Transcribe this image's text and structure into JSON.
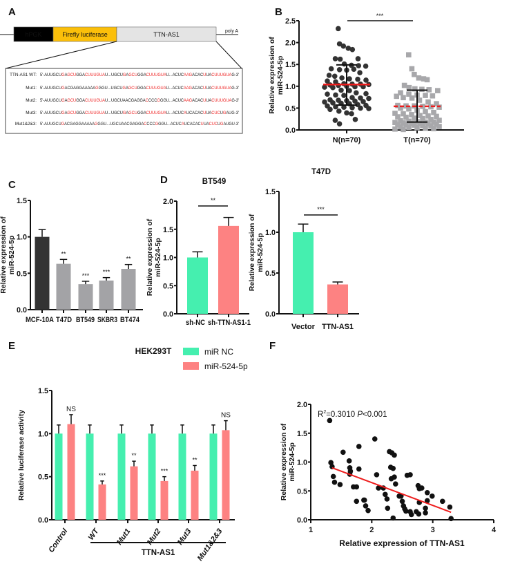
{
  "panel_labels": {
    "a": "A",
    "b": "B",
    "c": "C",
    "d": "D",
    "e": "E",
    "f": "F"
  },
  "colors": {
    "green": "#45efaf",
    "pink": "#fd8282",
    "dark": "#333333",
    "grey": "#a3a3a6",
    "red": "#ee1c1c",
    "orange": "#fbbf0a",
    "construct_grey": "#e4e4e4"
  },
  "panel_a": {
    "construct": {
      "promoter": "hPGK",
      "reporter": "Firefly luciferase",
      "insert": "TTN-AS1",
      "tail": "poly A"
    },
    "sequences": [
      {
        "label": "TTN-AS1 WT:",
        "segments": [
          [
            "5'-AUUGCU",
            0
          ],
          [
            "G",
            1
          ],
          [
            "A",
            0
          ],
          [
            "GCU",
            1
          ],
          [
            "GGA",
            0
          ],
          [
            "CUUUGUA",
            1
          ],
          [
            "U...UGCU",
            0
          ],
          [
            "G",
            1
          ],
          [
            "A",
            0
          ],
          [
            "GCU",
            1
          ],
          [
            "GGA",
            0
          ],
          [
            "CUUUGUA",
            1
          ],
          [
            "U...ACUC",
            0
          ],
          [
            "AAG",
            1
          ],
          [
            "ACAC",
            0
          ],
          [
            "U",
            1
          ],
          [
            "UA",
            0
          ],
          [
            "CUUUGUA",
            1
          ],
          [
            "G-3'",
            0
          ]
        ]
      },
      {
        "label": "Mut1:",
        "segments": [
          [
            "5'-AUUGCU",
            0
          ],
          [
            "G",
            1
          ],
          [
            "ACGAGGAAAAA",
            0
          ],
          [
            "G",
            1
          ],
          [
            "GGU...UGCU",
            0
          ],
          [
            "G",
            1
          ],
          [
            "A",
            0
          ],
          [
            "GCU",
            1
          ],
          [
            "GGA",
            0
          ],
          [
            "CUUUGUA",
            1
          ],
          [
            "U...ACUC",
            0
          ],
          [
            "AAG",
            1
          ],
          [
            "ACAC",
            0
          ],
          [
            "U",
            1
          ],
          [
            "UA",
            0
          ],
          [
            "CUUUGUA",
            1
          ],
          [
            "G-3'",
            0
          ]
        ]
      },
      {
        "label": "Mut2:",
        "segments": [
          [
            "5'-AUUGCU",
            0
          ],
          [
            "G",
            1
          ],
          [
            "A",
            0
          ],
          [
            "GCU",
            1
          ],
          [
            "GGA",
            0
          ],
          [
            "CUUUGUA",
            1
          ],
          [
            "U...UGCUAACGAGGA",
            0
          ],
          [
            "C",
            1
          ],
          [
            "CCC",
            0
          ],
          [
            "G",
            1
          ],
          [
            "GGU...ACUC",
            0
          ],
          [
            "AAG",
            1
          ],
          [
            "ACAC",
            0
          ],
          [
            "U",
            1
          ],
          [
            "UA",
            0
          ],
          [
            "CUUUGUA",
            1
          ],
          [
            "G-3'",
            0
          ]
        ]
      },
      {
        "label": "Mut3:",
        "segments": [
          [
            "5'-AUUGCU",
            0
          ],
          [
            "G",
            1
          ],
          [
            "A",
            0
          ],
          [
            "GCU",
            1
          ],
          [
            "GGA",
            0
          ],
          [
            "CUUUGUA",
            1
          ],
          [
            "U...UGCU",
            0
          ],
          [
            "G",
            1
          ],
          [
            "A",
            0
          ],
          [
            "GCU",
            1
          ],
          [
            "GGA",
            0
          ],
          [
            "CUUUGUA",
            1
          ],
          [
            "U...ACUC",
            0
          ],
          [
            "A",
            1
          ],
          [
            "UCACAC",
            0
          ],
          [
            "U",
            1
          ],
          [
            "UA",
            0
          ],
          [
            "CUC",
            1
          ],
          [
            "U",
            0
          ],
          [
            "G",
            1
          ],
          [
            "AUG-3'",
            0
          ]
        ]
      },
      {
        "label": "Mut1&2&3:",
        "segments": [
          [
            "5'-AUUGCU",
            0
          ],
          [
            "G",
            1
          ],
          [
            "ACGAGGAAAAA",
            0
          ],
          [
            "G",
            1
          ],
          [
            "GGU...UGCUAACGAGGA",
            0
          ],
          [
            "C",
            1
          ],
          [
            "CCC",
            0
          ],
          [
            "G",
            1
          ],
          [
            "GGU...ACUC",
            0
          ],
          [
            "A",
            1
          ],
          [
            "UCACAC",
            0
          ],
          [
            "U",
            1
          ],
          [
            "UA",
            0
          ],
          [
            "CUC",
            1
          ],
          [
            "U",
            0
          ],
          [
            "G",
            1
          ],
          [
            "AUGU-3'",
            0
          ]
        ]
      }
    ]
  },
  "chart_data": [
    {
      "id": "B",
      "type": "scatter",
      "title": "",
      "ylabel": [
        "Relative expression of",
        "miR-524-5p"
      ],
      "xlabel": "",
      "ylim": [
        0,
        2.5
      ],
      "yticks": [
        "0.0",
        "0.5",
        "1.0",
        "1.5",
        "2.0",
        "2.5"
      ],
      "categories": [
        "N(n=70)",
        "T(n=70)"
      ],
      "significance": "***",
      "series": [
        {
          "name": "N(n=70)",
          "marker": "circle",
          "mean": 1.04,
          "sd_low": 0.57,
          "sd_high": 1.49,
          "values": [
            2.32,
            1.97,
            1.92,
            1.87,
            1.84,
            1.63,
            1.63,
            1.62,
            1.51,
            1.48,
            1.47,
            1.46,
            1.4,
            1.38,
            1.37,
            1.39,
            1.31,
            1.25,
            1.23,
            1.19,
            1.17,
            1.16,
            1.14,
            1.12,
            1.1,
            1.06,
            1.05,
            1.05,
            1.04,
            1.03,
            1.02,
            1.0,
            0.99,
            0.99,
            0.98,
            0.97,
            0.91,
            0.9,
            0.85,
            0.83,
            0.82,
            0.8,
            0.79,
            0.74,
            0.73,
            0.72,
            0.69,
            0.68,
            0.67,
            0.66,
            0.65,
            0.64,
            0.62,
            0.61,
            0.6,
            0.58,
            0.56,
            0.55,
            0.53,
            0.52,
            0.51,
            0.5,
            0.49,
            0.47,
            0.43,
            0.39,
            0.37,
            0.24,
            0.22,
            0.14
          ]
        },
        {
          "name": "T(n=70)",
          "marker": "square",
          "mean": 0.54,
          "sd_low": 0.18,
          "sd_high": 0.91,
          "values": [
            1.72,
            1.4,
            1.27,
            1.19,
            1.17,
            1.15,
            1.02,
            0.97,
            0.94,
            0.93,
            0.92,
            0.9,
            0.85,
            0.82,
            0.8,
            0.79,
            0.78,
            0.77,
            0.74,
            0.73,
            0.68,
            0.64,
            0.6,
            0.56,
            0.55,
            0.55,
            0.54,
            0.53,
            0.52,
            0.5,
            0.48,
            0.45,
            0.42,
            0.4,
            0.38,
            0.37,
            0.35,
            0.33,
            0.32,
            0.31,
            0.3,
            0.29,
            0.27,
            0.26,
            0.24,
            0.22,
            0.21,
            0.2,
            0.19,
            0.18,
            0.18,
            0.17,
            0.16,
            0.15,
            0.15,
            0.14,
            0.13,
            0.12,
            0.12,
            0.11,
            0.1,
            0.09,
            0.08,
            0.07,
            0.06,
            0.05,
            0.04,
            0.03,
            0.02,
            0.01
          ]
        }
      ]
    },
    {
      "id": "C",
      "type": "bar",
      "title": "",
      "ylabel": [
        "Relative expression of",
        "miR-524-5p"
      ],
      "ylim": [
        0,
        1.5
      ],
      "yticks": [
        "0.0",
        "0.5",
        "1.0",
        "1.5"
      ],
      "categories": [
        "MCF-10A",
        "T47D",
        "BT549",
        "SKBR3",
        "BT474"
      ],
      "values": [
        1.0,
        0.63,
        0.35,
        0.4,
        0.56
      ],
      "errors": [
        0.1,
        0.06,
        0.04,
        0.04,
        0.06
      ],
      "significance": [
        "",
        "**",
        "***",
        "***",
        "**"
      ],
      "bar_colors": [
        "#333333",
        "#a3a3a6",
        "#a3a3a6",
        "#a3a3a6",
        "#a3a3a6"
      ]
    },
    {
      "id": "D1",
      "type": "bar",
      "title": "BT549",
      "ylabel": [
        "Relative expression of",
        "miR-524-5p"
      ],
      "ylim": [
        0,
        2.0
      ],
      "yticks": [
        "0.0",
        "0.5",
        "1.0",
        "1.5",
        "2.0"
      ],
      "categories": [
        "sh-NC",
        "sh-TTN-AS1-1"
      ],
      "values": [
        1.0,
        1.56
      ],
      "errors": [
        0.1,
        0.15
      ],
      "significance": "**",
      "bar_colors": [
        "#45efaf",
        "#fd8282"
      ]
    },
    {
      "id": "D2",
      "type": "bar",
      "title": "T47D",
      "ylabel": [
        "Relative expression of",
        "miR-524-5p"
      ],
      "ylim": [
        0,
        1.5
      ],
      "yticks": [
        "0.0",
        "0.5",
        "1.0",
        "1.5"
      ],
      "categories": [
        "Vector",
        "TTN-AS1"
      ],
      "values": [
        1.0,
        0.36
      ],
      "errors": [
        0.1,
        0.03
      ],
      "significance": "***",
      "bar_colors": [
        "#45efaf",
        "#fd8282"
      ]
    },
    {
      "id": "E",
      "type": "bar",
      "title": "HEK293T",
      "ylabel": "Relative luciferase activity",
      "ylim": [
        0,
        1.5
      ],
      "yticks": [
        "0.0",
        "0.5",
        "1.0",
        "1.5"
      ],
      "categories": [
        "Control",
        "WT",
        "Mut1",
        "Mut2",
        "Mut3",
        "Mut1&2&3"
      ],
      "group_label": "TTN-AS1",
      "legend_position": "top-right",
      "series": [
        {
          "name": "miR NC",
          "color": "#45efaf",
          "values": [
            1,
            1,
            1,
            1,
            1,
            1
          ],
          "errors": [
            0.1,
            0.1,
            0.1,
            0.1,
            0.1,
            0.1
          ]
        },
        {
          "name": "miR-524-5p",
          "color": "#fd8282",
          "values": [
            1.11,
            0.41,
            0.62,
            0.45,
            0.57,
            1.04
          ],
          "errors": [
            0.11,
            0.04,
            0.06,
            0.05,
            0.06,
            0.11
          ]
        }
      ],
      "significance": [
        "NS",
        "***",
        "**",
        "***",
        "**",
        "NS"
      ]
    },
    {
      "id": "F",
      "type": "scatter",
      "xlabel": "Relative expression of TTN-AS1",
      "ylabel": [
        "Relative expression of",
        "miR-524-5p"
      ],
      "xlim": [
        1,
        4
      ],
      "ylim": [
        0,
        2.0
      ],
      "xticks": [
        "1",
        "2",
        "3",
        "4"
      ],
      "yticks": [
        "0.0",
        "0.5",
        "1.0",
        "1.5",
        "2.0"
      ],
      "annotation": {
        "r2_label": "R",
        "r2_sup": "2",
        "r2_value": "=0.3010 ",
        "p_label": "P",
        "p_value": "<0.001"
      },
      "regression": {
        "x": [
          1.35,
          3.3
        ],
        "y": [
          0.9,
          0.13
        ]
      },
      "points": [
        [
          1.31,
          1.72
        ],
        [
          1.33,
          0.99
        ],
        [
          1.35,
          0.92
        ],
        [
          1.37,
          0.75
        ],
        [
          1.39,
          0.65
        ],
        [
          1.48,
          0.61
        ],
        [
          1.53,
          1.17
        ],
        [
          1.63,
          1.02
        ],
        [
          1.64,
          0.9
        ],
        [
          1.65,
          0.84
        ],
        [
          1.64,
          0.79
        ],
        [
          1.7,
          0.57
        ],
        [
          1.75,
          0.57
        ],
        [
          1.75,
          0.32
        ],
        [
          1.79,
          0.88
        ],
        [
          1.79,
          1.27
        ],
        [
          1.87,
          0.34
        ],
        [
          1.88,
          0.34
        ],
        [
          1.9,
          0.24
        ],
        [
          1.94,
          0.16
        ],
        [
          2.05,
          1.4
        ],
        [
          2.08,
          0.78
        ],
        [
          2.11,
          0.55
        ],
        [
          2.19,
          0.55
        ],
        [
          2.22,
          0.44
        ],
        [
          2.25,
          0.36
        ],
        [
          2.26,
          0.2
        ],
        [
          2.29,
          1.18
        ],
        [
          2.33,
          1.16
        ],
        [
          2.37,
          1.12
        ],
        [
          2.31,
          0.91
        ],
        [
          2.35,
          0.89
        ],
        [
          2.37,
          0.74
        ],
        [
          2.32,
          0.71
        ],
        [
          2.39,
          0.62
        ],
        [
          2.35,
          0.03
        ],
        [
          2.45,
          0.41
        ],
        [
          2.48,
          0.41
        ],
        [
          2.5,
          0.32
        ],
        [
          2.52,
          0.24
        ],
        [
          2.54,
          0.19
        ],
        [
          2.56,
          0.15
        ],
        [
          2.58,
          0.77
        ],
        [
          2.63,
          0.78
        ],
        [
          2.63,
          0.14
        ],
        [
          2.65,
          0.09
        ],
        [
          2.73,
          0.14
        ],
        [
          2.77,
          0.1
        ],
        [
          2.76,
          0.59
        ],
        [
          2.78,
          0.54
        ],
        [
          2.82,
          0.55
        ],
        [
          2.78,
          0.3
        ],
        [
          2.88,
          0.2
        ],
        [
          2.88,
          0.12
        ],
        [
          2.91,
          0.47
        ],
        [
          2.91,
          0.33
        ],
        [
          2.99,
          0.41
        ],
        [
          3.16,
          0.32
        ],
        [
          3.28,
          0.22
        ],
        [
          3.3,
          0.02
        ]
      ]
    }
  ]
}
